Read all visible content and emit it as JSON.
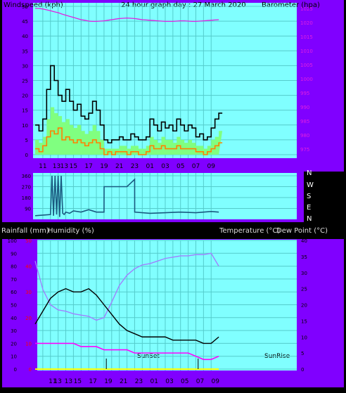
{
  "header": {
    "windspeed_label": "Windspeed (kph)",
    "title": "24 hour graph day : 27 March 2020",
    "barometer_label": "Barometer (hpa)"
  },
  "colors": {
    "frame": "#8000ff",
    "plot_bg": "#80ffff",
    "grid": "#55cccc",
    "gust": "#000000",
    "wind_avg": "#80ff80",
    "wind_min": "#ff8000",
    "baro": "#e020e0",
    "dir": "#1a5a80",
    "temp": "#000000",
    "humidity": "#a080ff",
    "dew": "#ff00ff",
    "rain": "#ffff00",
    "red_axis": "#ff0000"
  },
  "x_tick_labels": [
    "11",
    "13",
    "13",
    "15",
    "17",
    "19",
    "21",
    "23",
    "01",
    "03",
    "05",
    "07",
    "09"
  ],
  "middle": {
    "dir_left_labels": [
      "360",
      "270",
      "180",
      "90"
    ],
    "dir_right_labels": [
      "N",
      "W",
      "S",
      "E",
      "N"
    ]
  },
  "bottom_header": {
    "rain_label": "Rainfall (mm)",
    "humidity_label": "Humidity (%)",
    "temp_label": "Temperature (°C)",
    "dew_label": "Dew Point (°C)"
  },
  "bottom": {
    "sunset_label": "SunSet",
    "sunrise_label": "SunRise"
  },
  "chart_data": [
    {
      "type": "line",
      "name": "wind_baro",
      "x_hours": [
        10,
        10.5,
        11,
        11.5,
        12,
        12.5,
        13,
        13.5,
        14,
        14.5,
        15,
        15.5,
        16,
        16.5,
        17,
        17.5,
        18,
        18.5,
        19,
        19.5,
        20,
        20.5,
        21,
        21.5,
        22,
        22.5,
        23,
        23.5,
        24,
        24.5,
        25,
        25.5,
        26,
        26.5,
        27,
        27.5,
        28,
        28.5,
        29,
        29.5,
        30,
        30.5,
        31,
        31.5,
        32,
        32.5,
        33,
        33.5,
        34
      ],
      "series": [
        {
          "role": "gust",
          "values": [
            10,
            8,
            12,
            22,
            30,
            25,
            20,
            18,
            22,
            18,
            15,
            17,
            13,
            12,
            14,
            18,
            15,
            10,
            5,
            4,
            5,
            5,
            6,
            5,
            5,
            7,
            6,
            5,
            5,
            6,
            12,
            10,
            8,
            11,
            9,
            10,
            8,
            12,
            10,
            8,
            10,
            9,
            6,
            7,
            5,
            6,
            9,
            12,
            14
          ]
        },
        {
          "role": "avg",
          "values": [
            5,
            4,
            6,
            12,
            16,
            14,
            13,
            11,
            12,
            10,
            9,
            10,
            8,
            7,
            8,
            10,
            8,
            5,
            2,
            2,
            2,
            2,
            3,
            3,
            2,
            3,
            3,
            2,
            2,
            3,
            6,
            5,
            4,
            6,
            5,
            5,
            4,
            6,
            5,
            4,
            5,
            4,
            3,
            3,
            2,
            3,
            5,
            6,
            8
          ]
        },
        {
          "role": "min",
          "values": [
            2,
            1,
            3,
            6,
            8,
            7,
            9,
            5,
            6,
            5,
            4,
            5,
            4,
            3,
            4,
            5,
            4,
            2,
            0,
            1,
            0,
            1,
            1,
            1,
            0,
            1,
            1,
            0,
            0,
            1,
            3,
            2,
            2,
            3,
            2,
            2,
            2,
            3,
            2,
            2,
            2,
            2,
            1,
            1,
            0,
            1,
            2,
            3,
            4
          ]
        },
        {
          "role": "barometer",
          "values": [
            1025,
            1025,
            1024.8,
            1024.5,
            1024.2,
            1023.8,
            1023.5,
            1023,
            1022.6,
            1022.2,
            1021.8,
            1021.4,
            1021,
            1020.8,
            1020.5,
            1020.4,
            1020.4,
            1020.5,
            1020.6,
            1020.8,
            1021,
            1021.2,
            1021.4,
            1021.5,
            1021.6,
            1021.5,
            1021.4,
            1021.2,
            1021,
            1020.9,
            1020.8,
            1020.7,
            1020.6,
            1020.5,
            1020.4,
            1020.4,
            1020.4,
            1020.5,
            1020.6,
            1020.6,
            1020.5,
            1020.4,
            1020.4,
            1020.5,
            1020.6,
            1020.7,
            1020.8,
            1020.9,
            1021
          ]
        }
      ],
      "y_left_ticks": [
        0,
        5,
        10,
        15,
        20,
        25,
        30,
        35,
        40,
        45,
        50
      ],
      "y_left_range": [
        0,
        50
      ],
      "y_right_ticks": [
        975,
        980,
        985,
        990,
        995,
        1000,
        1005,
        1010,
        1015,
        1020,
        1025
      ],
      "y_right_range": [
        973,
        1027
      ]
    },
    {
      "type": "line",
      "name": "wind_direction",
      "x_hours": [
        10,
        12,
        12.2,
        12.4,
        12.6,
        12.8,
        13,
        13.2,
        13.4,
        13.6,
        13.8,
        14,
        14.5,
        15,
        16,
        17,
        18,
        19,
        19.01,
        21,
        22,
        23,
        23.01,
        25,
        27,
        29,
        31,
        33,
        34
      ],
      "series": [
        {
          "role": "direction",
          "values": [
            30,
            40,
            360,
            30,
            360,
            40,
            360,
            20,
            360,
            50,
            40,
            60,
            50,
            70,
            60,
            80,
            60,
            60,
            270,
            270,
            270,
            330,
            60,
            50,
            55,
            60,
            55,
            65,
            60
          ]
        }
      ],
      "y_left_ticks": [
        360,
        270,
        180,
        90
      ],
      "y_range": [
        0,
        360
      ]
    },
    {
      "type": "line",
      "name": "temp_humidity",
      "x_hours": [
        10,
        11,
        12,
        13,
        14,
        15,
        16,
        17,
        18,
        19,
        20,
        21,
        22,
        23,
        24,
        25,
        26,
        27,
        28,
        29,
        30,
        31,
        32,
        33,
        34
      ],
      "series": [
        {
          "role": "temperature",
          "values": [
            14,
            18,
            22,
            24,
            25,
            24,
            24,
            25,
            23,
            20,
            17,
            14,
            12,
            11,
            10,
            10,
            10,
            10,
            9,
            9,
            9,
            9,
            8,
            8,
            10
          ]
        },
        {
          "role": "humidity",
          "values": [
            84,
            62,
            50,
            46,
            45,
            43,
            42,
            41,
            38,
            40,
            52,
            65,
            73,
            78,
            81,
            82,
            84,
            86,
            87,
            88,
            88,
            89,
            89,
            90,
            80
          ]
        },
        {
          "role": "dew_point",
          "values": [
            8,
            8,
            8,
            8,
            8,
            8,
            7,
            7,
            7,
            6,
            6,
            6,
            6,
            5,
            5,
            5,
            5,
            5,
            5,
            5,
            5,
            4,
            3,
            3,
            4
          ]
        },
        {
          "role": "rainfall",
          "values": [
            0,
            0,
            0,
            0,
            0,
            0,
            0,
            0,
            0,
            0,
            0,
            0,
            0,
            0,
            0,
            0,
            0,
            0,
            0,
            0,
            0,
            0,
            0,
            0,
            0
          ]
        }
      ],
      "y_left_ticks": [
        100,
        90,
        80,
        70,
        60,
        50,
        40,
        30,
        20,
        10,
        0
      ],
      "y_red_ticks": [
        50,
        40,
        30,
        20,
        10,
        0
      ],
      "y_right_ticks": [
        40,
        35,
        30,
        25,
        20,
        15,
        10,
        5,
        0
      ],
      "sunset_hour": 19.3,
      "sunrise_hour": 31.3
    }
  ]
}
